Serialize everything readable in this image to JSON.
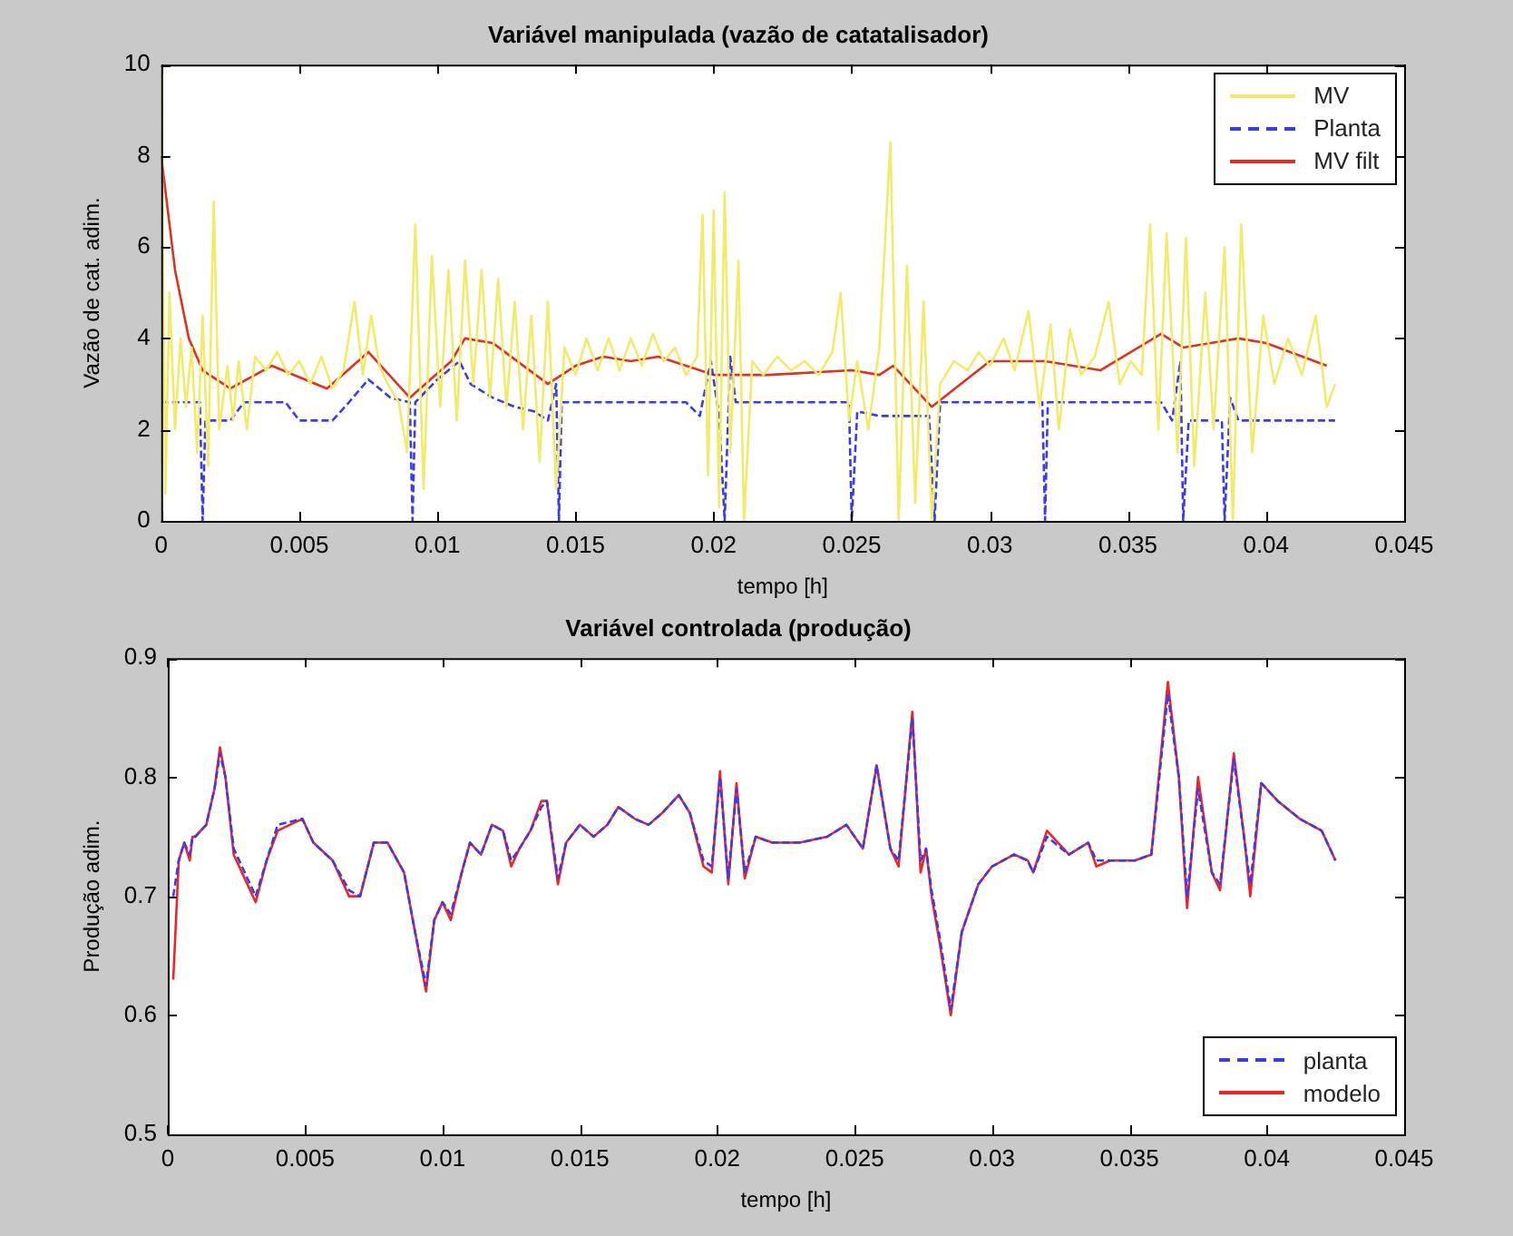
{
  "chart_data": [
    {
      "type": "line",
      "title": "Variável manipulada (vazão de catatalisador)",
      "xlabel": "tempo [h]",
      "ylabel": "Vazão de cat. adim.",
      "xlim": [
        0,
        0.045
      ],
      "xticks": [
        0,
        0.005,
        0.01,
        0.015,
        0.02,
        0.025,
        0.03,
        0.035,
        0.04,
        0.045
      ],
      "ylim": [
        0,
        10
      ],
      "yticks": [
        0,
        2,
        4,
        6,
        8,
        10
      ],
      "grid": false,
      "legend": "top right",
      "marker": "none",
      "series": [
        {
          "name": "MV",
          "color": "#f2ea6a",
          "line_style": "solid",
          "x": [
            0,
            0.00015,
            0.0003,
            0.0005,
            0.0007,
            0.0009,
            0.0011,
            0.0013,
            0.0015,
            0.0017,
            0.0019,
            0.0021,
            0.0024,
            0.0026,
            0.0028,
            0.0031,
            0.0034,
            0.0038,
            0.0042,
            0.0046,
            0.005,
            0.0054,
            0.0058,
            0.0062,
            0.0066,
            0.007,
            0.0073,
            0.0076,
            0.0079,
            0.0082,
            0.0086,
            0.0089,
            0.0092,
            0.0095,
            0.0098,
            0.0101,
            0.0104,
            0.0107,
            0.011,
            0.0113,
            0.0116,
            0.0119,
            0.0122,
            0.0125,
            0.0128,
            0.0131,
            0.0134,
            0.0137,
            0.014,
            0.0143,
            0.0146,
            0.015,
            0.0154,
            0.0158,
            0.0162,
            0.0166,
            0.017,
            0.0174,
            0.0178,
            0.0182,
            0.0186,
            0.019,
            0.0194,
            0.0196,
            0.0198,
            0.02,
            0.0202,
            0.0204,
            0.0206,
            0.0209,
            0.0211,
            0.0214,
            0.0218,
            0.0223,
            0.0228,
            0.0233,
            0.0238,
            0.0243,
            0.0246,
            0.0249,
            0.0252,
            0.0256,
            0.026,
            0.0264,
            0.0267,
            0.027,
            0.0273,
            0.0276,
            0.0279,
            0.0282,
            0.0287,
            0.0292,
            0.0296,
            0.03,
            0.0305,
            0.0309,
            0.0314,
            0.0318,
            0.0322,
            0.0325,
            0.0329,
            0.0333,
            0.0338,
            0.0343,
            0.0347,
            0.0351,
            0.0355,
            0.0358,
            0.0361,
            0.0364,
            0.0368,
            0.0371,
            0.0374,
            0.0378,
            0.0381,
            0.0385,
            0.0388,
            0.0391,
            0.0395,
            0.0399,
            0.0403,
            0.0408,
            0.0413,
            0.0418,
            0.0422,
            0.0425
          ],
          "values": [
            10,
            0.6,
            5,
            2,
            4,
            2.5,
            3.8,
            1.5,
            4.5,
            1.2,
            7,
            2,
            3.4,
            2.2,
            3.5,
            2,
            3.6,
            3.3,
            3.7,
            3.2,
            3.5,
            3,
            3.6,
            2.9,
            3.3,
            4.8,
            3.2,
            4.5,
            3.4,
            3,
            2.6,
            1.5,
            6.5,
            0.7,
            5.8,
            2.5,
            5.5,
            2.2,
            5.7,
            3,
            5.5,
            2.7,
            5.3,
            2.5,
            4.8,
            2,
            4.5,
            1.3,
            4.8,
            0.7,
            3.8,
            3.2,
            4,
            3.3,
            4,
            3.3,
            4,
            3.4,
            4.1,
            3.5,
            3.8,
            3.2,
            3.6,
            6.7,
            1,
            6.8,
            0.3,
            7.2,
            1.5,
            5.7,
            0,
            3.5,
            3.2,
            3.6,
            3.3,
            3.5,
            3.2,
            3.7,
            5,
            2.2,
            3.5,
            2,
            3.8,
            8.3,
            0,
            5.6,
            0.4,
            4.8,
            0,
            3,
            3.5,
            3.3,
            3.7,
            3.4,
            4,
            3.3,
            4.6,
            2.5,
            4.3,
            2,
            4.2,
            3.2,
            3.6,
            4.8,
            3,
            3.5,
            3.2,
            6.5,
            2,
            6.3,
            1.5,
            6.2,
            1.2,
            5,
            2,
            6,
            0,
            6.5,
            1.5,
            4.5,
            3,
            4,
            3.2,
            4.5,
            2.5,
            3
          ]
        },
        {
          "name": "Planta",
          "color": "#3a3af0",
          "line_style": "dashed",
          "x": [
            0,
            0.0014,
            0.0015,
            0.0016,
            0.0025,
            0.003,
            0.0045,
            0.005,
            0.0062,
            0.0068,
            0.0075,
            0.0083,
            0.009,
            0.0091,
            0.0092,
            0.01,
            0.0108,
            0.0112,
            0.012,
            0.0128,
            0.0135,
            0.014,
            0.0143,
            0.0144,
            0.0145,
            0.019,
            0.0195,
            0.0199,
            0.0202,
            0.0204,
            0.0206,
            0.0208,
            0.0249,
            0.025,
            0.0252,
            0.026,
            0.0278,
            0.028,
            0.0282,
            0.0319,
            0.032,
            0.0321,
            0.0362,
            0.0366,
            0.0369,
            0.037,
            0.0372,
            0.0384,
            0.0385,
            0.0387,
            0.039,
            0.0425
          ],
          "values": [
            2.6,
            2.6,
            0,
            2.2,
            2.2,
            2.6,
            2.6,
            2.2,
            2.2,
            2.6,
            3.1,
            2.7,
            2.6,
            0,
            2.6,
            3.1,
            3.5,
            3,
            2.7,
            2.5,
            2.4,
            2.2,
            3,
            0,
            2.6,
            2.6,
            2.3,
            3.5,
            2.3,
            0,
            3.6,
            2.6,
            2.6,
            0,
            2.4,
            2.3,
            2.3,
            0,
            2.6,
            2.6,
            0,
            2.6,
            2.6,
            2.2,
            3.5,
            0,
            2.2,
            2.2,
            0,
            2.7,
            2.2,
            2.2
          ]
        },
        {
          "name": "MV filt",
          "color": "#e0301e",
          "line_style": "solid",
          "x": [
            0,
            0.0005,
            0.001,
            0.0015,
            0.0025,
            0.004,
            0.006,
            0.0075,
            0.009,
            0.0105,
            0.011,
            0.012,
            0.014,
            0.015,
            0.016,
            0.017,
            0.018,
            0.019,
            0.02,
            0.022,
            0.025,
            0.026,
            0.0265,
            0.0279,
            0.03,
            0.032,
            0.034,
            0.0362,
            0.037,
            0.038,
            0.039,
            0.04,
            0.0422
          ],
          "values": [
            8,
            5.5,
            4,
            3.3,
            2.9,
            3.4,
            2.9,
            3.7,
            2.7,
            3.5,
            4,
            3.9,
            3,
            3.4,
            3.6,
            3.5,
            3.6,
            3.4,
            3.2,
            3.2,
            3.3,
            3.2,
            3.4,
            2.5,
            3.5,
            3.5,
            3.3,
            4.1,
            3.8,
            3.9,
            4,
            3.9,
            3.4
          ]
        }
      ]
    },
    {
      "type": "line",
      "title": "Variável controlada (produção)",
      "xlabel": "tempo [h]",
      "ylabel": "Produção adim.",
      "xlim": [
        0,
        0.045
      ],
      "xticks": [
        0,
        0.005,
        0.01,
        0.015,
        0.02,
        0.025,
        0.03,
        0.035,
        0.04,
        0.045
      ],
      "ylim": [
        0.5,
        0.9
      ],
      "yticks": [
        0.5,
        0.6,
        0.7,
        0.8,
        0.9
      ],
      "grid": false,
      "legend": "bottom right",
      "marker": "none",
      "series": [
        {
          "name": "planta",
          "color": "#3a3af0",
          "line_style": "dashed",
          "x": [
            0.0002,
            0.0004,
            0.0006,
            0.0008,
            0.0009,
            0.001,
            0.0014,
            0.0017,
            0.0019,
            0.0021,
            0.0024,
            0.0027,
            0.0032,
            0.0036,
            0.004,
            0.0049,
            0.0053,
            0.006,
            0.0066,
            0.007,
            0.0075,
            0.008,
            0.0086,
            0.009,
            0.0094,
            0.0097,
            0.01,
            0.0103,
            0.0107,
            0.011,
            0.0114,
            0.0118,
            0.0122,
            0.0125,
            0.0128,
            0.0132,
            0.0136,
            0.0138,
            0.0142,
            0.0145,
            0.015,
            0.0155,
            0.016,
            0.0164,
            0.017,
            0.0175,
            0.018,
            0.0186,
            0.019,
            0.0195,
            0.0198,
            0.0201,
            0.0204,
            0.0207,
            0.021,
            0.0214,
            0.022,
            0.023,
            0.024,
            0.0247,
            0.0253,
            0.0258,
            0.0263,
            0.0266,
            0.0271,
            0.0274,
            0.0276,
            0.0278,
            0.0281,
            0.0285,
            0.0289,
            0.0295,
            0.03,
            0.0308,
            0.0313,
            0.0315,
            0.032,
            0.0328,
            0.0335,
            0.0338,
            0.0343,
            0.0352,
            0.0358,
            0.0364,
            0.0368,
            0.0371,
            0.0375,
            0.038,
            0.0383,
            0.0388,
            0.0392,
            0.0394,
            0.0398,
            0.0404,
            0.0412,
            0.042,
            0.0425
          ],
          "values": [
            0.7,
            0.73,
            0.745,
            0.735,
            0.75,
            0.75,
            0.76,
            0.79,
            0.82,
            0.8,
            0.74,
            0.725,
            0.7,
            0.73,
            0.76,
            0.765,
            0.745,
            0.73,
            0.705,
            0.7,
            0.745,
            0.745,
            0.72,
            0.67,
            0.625,
            0.68,
            0.695,
            0.685,
            0.72,
            0.745,
            0.735,
            0.76,
            0.755,
            0.73,
            0.74,
            0.755,
            0.775,
            0.78,
            0.715,
            0.745,
            0.76,
            0.75,
            0.76,
            0.775,
            0.765,
            0.76,
            0.77,
            0.785,
            0.77,
            0.73,
            0.725,
            0.8,
            0.715,
            0.79,
            0.72,
            0.75,
            0.745,
            0.745,
            0.75,
            0.76,
            0.74,
            0.81,
            0.74,
            0.73,
            0.85,
            0.73,
            0.74,
            0.705,
            0.665,
            0.605,
            0.67,
            0.71,
            0.725,
            0.735,
            0.73,
            0.72,
            0.75,
            0.735,
            0.745,
            0.73,
            0.73,
            0.73,
            0.735,
            0.87,
            0.8,
            0.7,
            0.79,
            0.72,
            0.71,
            0.815,
            0.745,
            0.71,
            0.795,
            0.78,
            0.765,
            0.755,
            0.73
          ]
        },
        {
          "name": "modelo",
          "color": "#f02424",
          "line_style": "solid",
          "x": [
            0.0002,
            0.0004,
            0.0006,
            0.0008,
            0.0009,
            0.001,
            0.0014,
            0.0017,
            0.0019,
            0.0021,
            0.0024,
            0.0027,
            0.0032,
            0.0036,
            0.004,
            0.0049,
            0.0053,
            0.006,
            0.0066,
            0.007,
            0.0075,
            0.008,
            0.0086,
            0.009,
            0.0094,
            0.0097,
            0.01,
            0.0103,
            0.0107,
            0.011,
            0.0114,
            0.0118,
            0.0122,
            0.0125,
            0.0128,
            0.0132,
            0.0136,
            0.0138,
            0.0142,
            0.0145,
            0.015,
            0.0155,
            0.016,
            0.0164,
            0.017,
            0.0175,
            0.018,
            0.0186,
            0.019,
            0.0195,
            0.0198,
            0.0201,
            0.0204,
            0.0207,
            0.021,
            0.0214,
            0.022,
            0.023,
            0.024,
            0.0247,
            0.0253,
            0.0258,
            0.0263,
            0.0266,
            0.0271,
            0.0274,
            0.0276,
            0.0278,
            0.0281,
            0.0285,
            0.0289,
            0.0295,
            0.03,
            0.0308,
            0.0313,
            0.0315,
            0.032,
            0.0328,
            0.0335,
            0.0338,
            0.0343,
            0.0352,
            0.0358,
            0.0364,
            0.0368,
            0.0371,
            0.0375,
            0.038,
            0.0383,
            0.0388,
            0.0392,
            0.0394,
            0.0398,
            0.0404,
            0.0412,
            0.042,
            0.0425
          ],
          "values": [
            0.63,
            0.73,
            0.745,
            0.73,
            0.75,
            0.75,
            0.76,
            0.79,
            0.825,
            0.8,
            0.735,
            0.72,
            0.695,
            0.73,
            0.755,
            0.765,
            0.745,
            0.73,
            0.7,
            0.7,
            0.745,
            0.745,
            0.72,
            0.67,
            0.62,
            0.68,
            0.695,
            0.68,
            0.72,
            0.745,
            0.735,
            0.76,
            0.755,
            0.725,
            0.74,
            0.755,
            0.78,
            0.78,
            0.71,
            0.745,
            0.76,
            0.75,
            0.76,
            0.775,
            0.765,
            0.76,
            0.77,
            0.785,
            0.77,
            0.725,
            0.72,
            0.805,
            0.71,
            0.795,
            0.715,
            0.75,
            0.745,
            0.745,
            0.75,
            0.76,
            0.74,
            0.81,
            0.74,
            0.725,
            0.855,
            0.72,
            0.74,
            0.7,
            0.66,
            0.6,
            0.67,
            0.71,
            0.725,
            0.735,
            0.73,
            0.72,
            0.755,
            0.735,
            0.745,
            0.725,
            0.73,
            0.73,
            0.735,
            0.88,
            0.8,
            0.69,
            0.8,
            0.72,
            0.705,
            0.82,
            0.745,
            0.7,
            0.795,
            0.78,
            0.765,
            0.755,
            0.73
          ]
        }
      ]
    }
  ]
}
